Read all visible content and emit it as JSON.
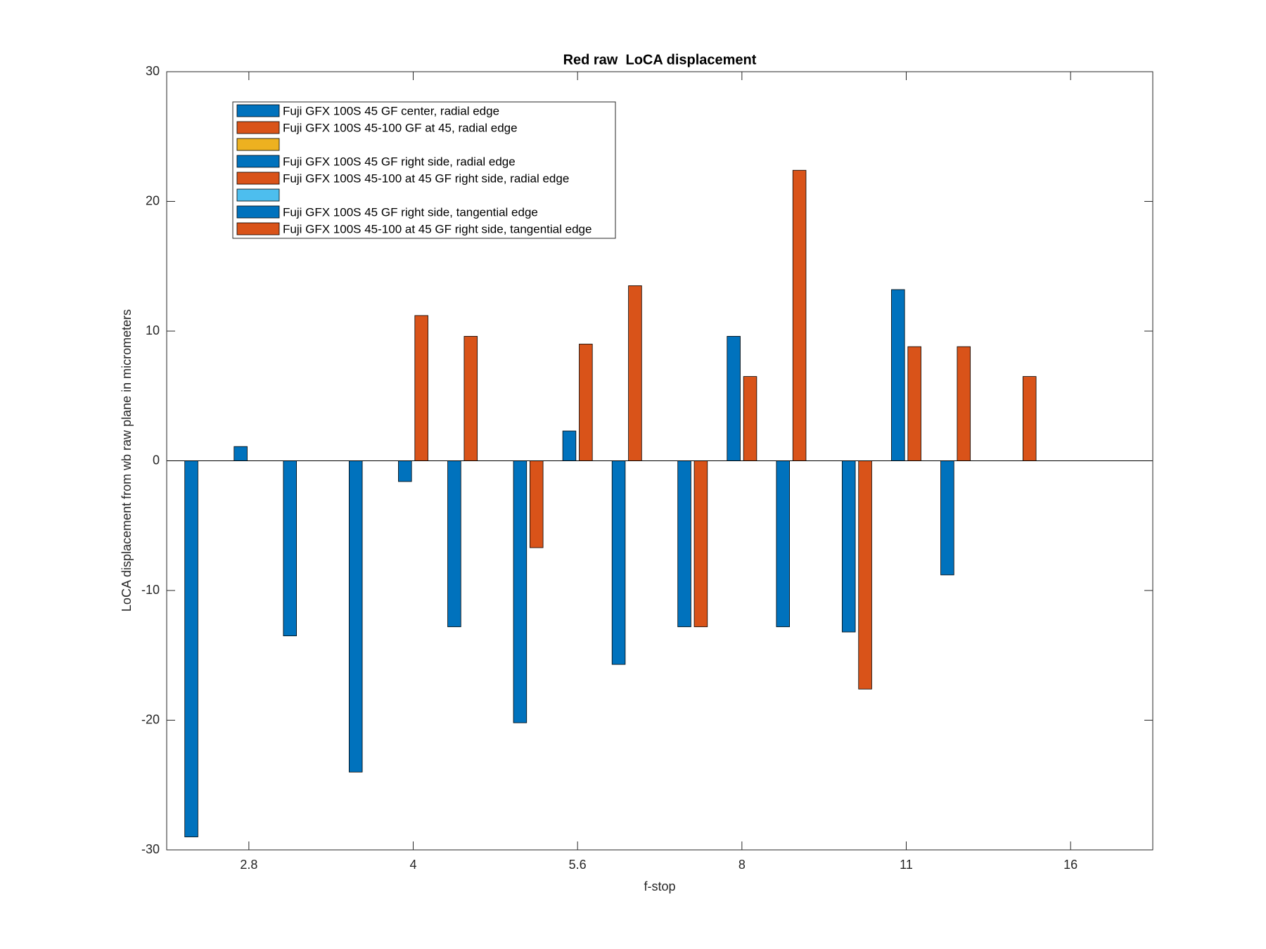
{
  "chart_data": {
    "type": "bar",
    "title": "Red raw  LoCA displacement",
    "x_label": "f-stop",
    "y_label": "LoCA displacement from wb raw plane in micrometers",
    "categories": [
      "2.8",
      "4",
      "5.6",
      "8",
      "11",
      "16"
    ],
    "series": [
      {
        "name": "Fuji GFX 100S 45 GF center, radial edge",
        "color": "#0072bd",
        "values": [
          -29,
          -24,
          -20.2,
          -12.8,
          -13.2,
          0
        ]
      },
      {
        "name": "Fuji GFX 100S 45-100 GF at 45, radial edge",
        "color": "#d95319",
        "values": [
          0,
          0,
          -6.7,
          -12.8,
          -17.6,
          6.5
        ]
      },
      {
        "color": "#edb120",
        "values": [
          0,
          0,
          0,
          0,
          0,
          0
        ]
      },
      {
        "name": "Fuji GFX 100S 45 GF right side, radial edge",
        "color": "#0072bd",
        "values": [
          1.1,
          -1.6,
          2.3,
          9.6,
          13.2,
          0
        ]
      },
      {
        "name": "Fuji GFX 100S 45-100 at 45 GF right side, radial edge",
        "color": "#d95319",
        "values": [
          0,
          11.2,
          9,
          6.5,
          8.8,
          0
        ]
      },
      {
        "color": "#4dbeee",
        "values": [
          0,
          0,
          0,
          0,
          0,
          0
        ]
      },
      {
        "name": "Fuji GFX 100S 45 GF right side, tangential edge",
        "color": "#0072bd",
        "values": [
          -13.5,
          -12.8,
          -15.7,
          -12.8,
          -8.8,
          0
        ]
      },
      {
        "name": "Fuji GFX 100S 45-100 at 45 GF right side, tangential edge",
        "color": "#d95319",
        "values": [
          0,
          9.6,
          13.5,
          22.4,
          8.8,
          0
        ]
      }
    ],
    "ylim": [
      -30,
      30
    ],
    "yticks": [
      -30,
      -20,
      -10,
      0,
      10,
      20,
      30
    ],
    "legend": "upper left",
    "grid": false
  }
}
